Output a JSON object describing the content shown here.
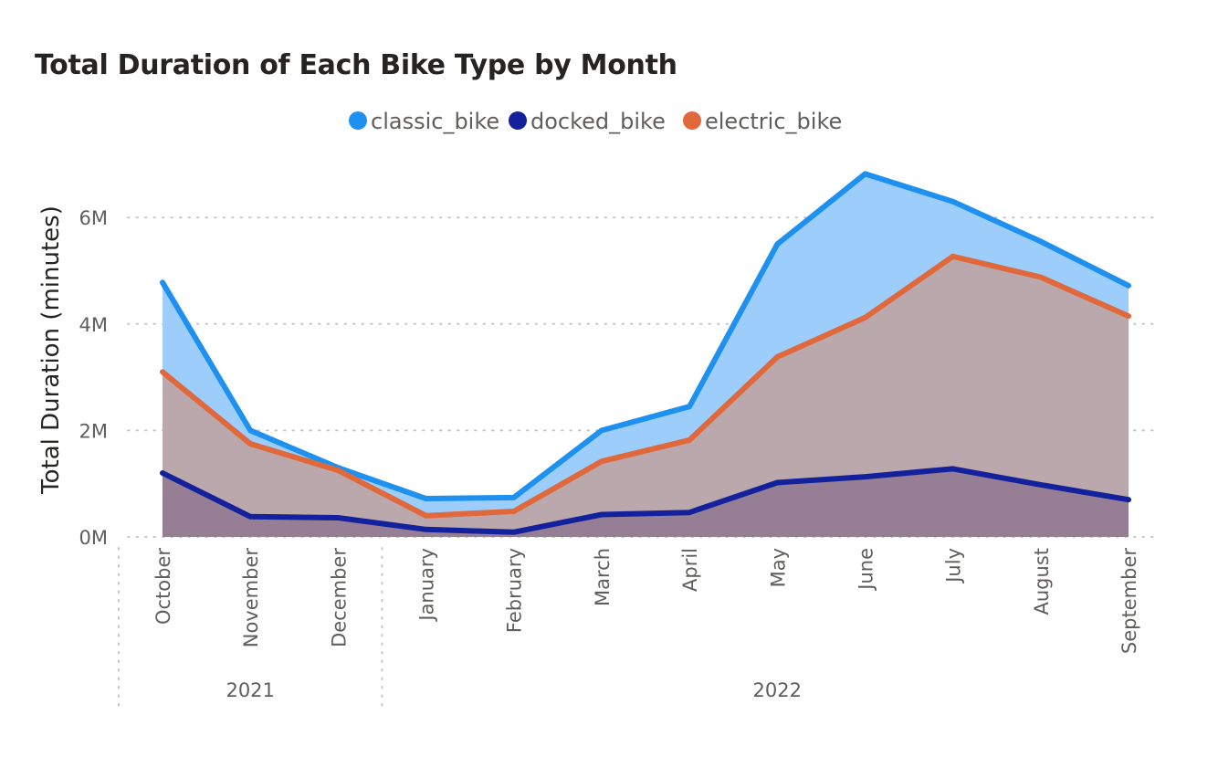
{
  "chart_data": {
    "type": "area",
    "title": "Total Duration of Each Bike Type by Month",
    "ylabel": "Total Duration (minutes)",
    "xlabel": "",
    "categories": [
      "October",
      "November",
      "December",
      "January",
      "February",
      "March",
      "April",
      "May",
      "June",
      "July",
      "August",
      "September"
    ],
    "year_groups": [
      {
        "label": "2021",
        "months": [
          "October",
          "November",
          "December"
        ]
      },
      {
        "label": "2022",
        "months": [
          "January",
          "February",
          "March",
          "April",
          "May",
          "June",
          "July",
          "August",
          "September"
        ]
      }
    ],
    "yticks": [
      {
        "value": 0,
        "label": "0M"
      },
      {
        "value": 2000000,
        "label": "2M"
      },
      {
        "value": 4000000,
        "label": "4M"
      },
      {
        "value": 6000000,
        "label": "6M"
      }
    ],
    "ylim": [
      0,
      7000000
    ],
    "grid": true,
    "legend_position": "top-center",
    "series": [
      {
        "name": "classic_bike",
        "color": "#1E90F0",
        "fill": "#9DCEFB",
        "values": [
          4780000,
          2000000,
          1300000,
          720000,
          740000,
          2000000,
          2450000,
          5500000,
          6820000,
          6300000,
          5550000,
          4720000
        ]
      },
      {
        "name": "docked_bike",
        "color": "#13219C",
        "fill": "#967E95",
        "values": [
          1200000,
          380000,
          360000,
          140000,
          90000,
          420000,
          460000,
          1020000,
          1130000,
          1280000,
          980000,
          700000
        ]
      },
      {
        "name": "electric_bike",
        "color": "#E0683A",
        "fill": "#BAA8AD",
        "values": [
          3100000,
          1750000,
          1250000,
          400000,
          480000,
          1420000,
          1820000,
          3380000,
          4120000,
          5270000,
          4880000,
          4150000
        ]
      }
    ]
  }
}
